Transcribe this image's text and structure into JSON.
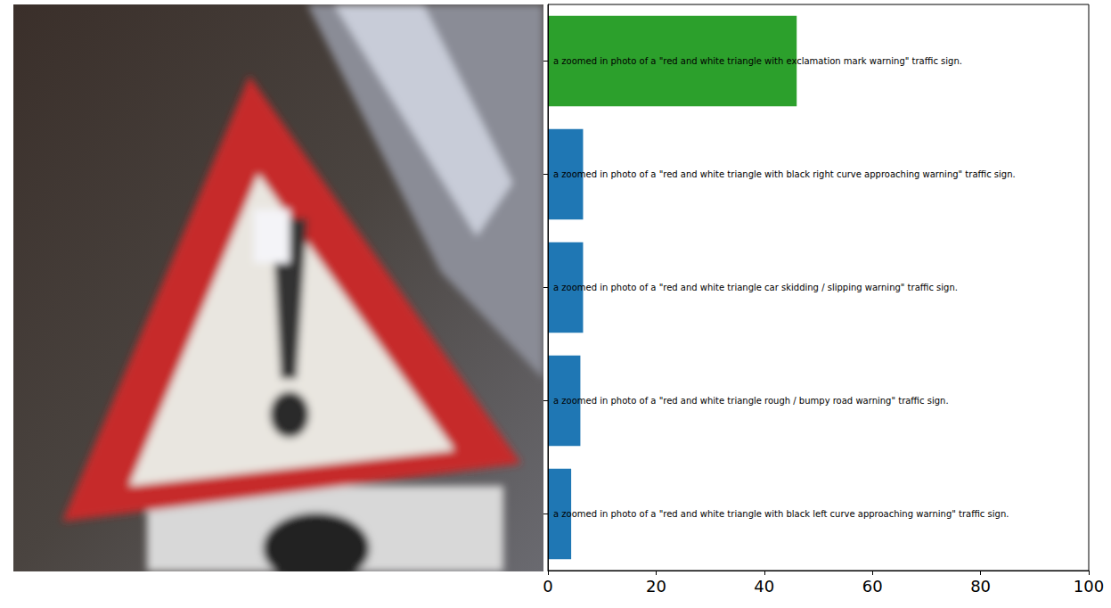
{
  "chart_data": {
    "type": "bar",
    "orientation": "horizontal",
    "categories": [
      "a zoomed in photo of a \"red and white triangle with exclamation mark warning\" traffic sign.",
      "a zoomed in photo of a \"red and white triangle with black right curve approaching warning\" traffic sign.",
      "a zoomed in photo of a \"red and white triangle car skidding / slipping warning\" traffic sign.",
      "a zoomed in photo of a \"red and white triangle rough / bumpy road warning\" traffic sign.",
      "a zoomed in photo of a \"red and white triangle with black left curve approaching warning\" traffic sign."
    ],
    "values": [
      46,
      6.5,
      6.5,
      6,
      4.3
    ],
    "colors": [
      "#2ca02c",
      "#1f77b4",
      "#1f77b4",
      "#1f77b4",
      "#1f77b4"
    ],
    "xlim": [
      0,
      100
    ],
    "xticks": [
      0,
      20,
      40,
      60,
      80,
      100
    ],
    "grid": false
  }
}
